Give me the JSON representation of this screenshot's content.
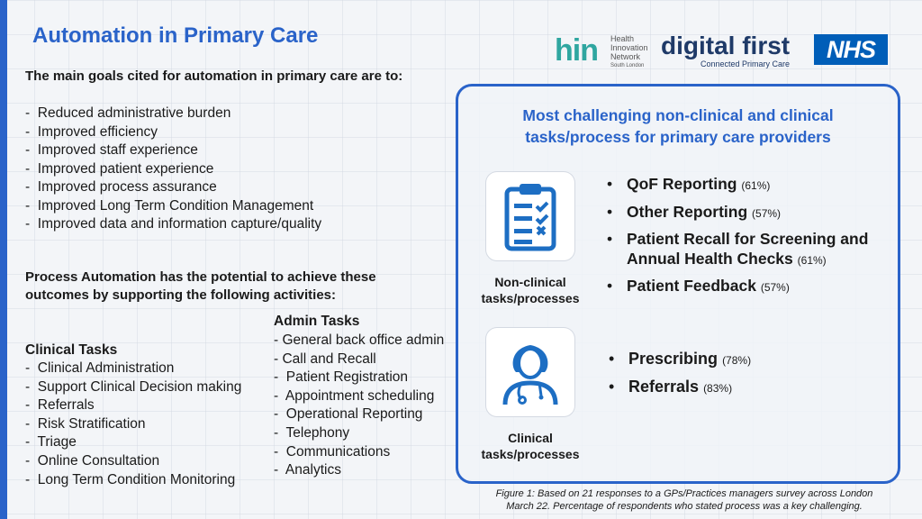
{
  "title": "Automation in Primary Care",
  "logos": {
    "hin": {
      "mark": "hin",
      "line1": "Health",
      "line2": "Innovation",
      "line3": "Network",
      "line4": "South London"
    },
    "digital_first": {
      "main": "digital first",
      "sub": "Connected Primary Care"
    },
    "nhs": "NHS"
  },
  "intro": "The main goals cited for automation in primary care are to:",
  "goals": [
    "Reduced administrative burden",
    "Improved efficiency",
    "Improved staff experience",
    "Improved patient experience",
    "Improved process assurance",
    "Improved Long Term Condition Management",
    "Improved data and information capture/quality"
  ],
  "process_automation": "Process Automation has the potential to achieve these outcomes by supporting the following activities:",
  "clinical_tasks": {
    "heading": "Clinical Tasks",
    "items": [
      "Clinical Administration",
      "Support Clinical Decision making",
      "Referrals",
      "Risk Stratification",
      "Triage",
      "Online Consultation",
      "Long Term Condition Monitoring"
    ]
  },
  "admin_tasks": {
    "heading": "Admin Tasks",
    "items": [
      "- General back office admin",
      "- Call and Recall",
      "Patient Registration",
      "Appointment scheduling",
      "Operational Reporting",
      "Telephony",
      "Communications",
      "Analytics"
    ]
  },
  "panel": {
    "title_line1": "Most challenging non-clinical and clinical",
    "title_line2": "tasks/process for primary care providers",
    "non_clinical": {
      "label_line1": "Non-clinical",
      "label_line2": "tasks/processes",
      "icon": "clipboard-checklist-icon",
      "items": [
        {
          "label": "QoF Reporting",
          "pct": "(61%)"
        },
        {
          "label": "Other Reporting",
          "pct": "(57%)"
        },
        {
          "label": "Patient Recall for Screening and Annual Health Checks",
          "pct": "(61%)"
        },
        {
          "label": "Patient Feedback",
          "pct": "(57%)"
        }
      ]
    },
    "clinical": {
      "label_line1": "Clinical",
      "label_line2": "tasks/processes",
      "icon": "doctor-stethoscope-icon",
      "items": [
        {
          "label": "Prescribing",
          "pct": "(78%)"
        },
        {
          "label": "Referrals",
          "pct": "(83%)"
        }
      ]
    }
  },
  "caption_line1": "Figure 1: Based on 21 responses to a GPs/Practices managers survey across London",
  "caption_line2": "March 22. Percentage of respondents who stated process was a key challenging.",
  "colors": {
    "accent": "#2a63c9",
    "icon_blue": "#1d6ec3",
    "nhs_blue": "#005eb8"
  }
}
